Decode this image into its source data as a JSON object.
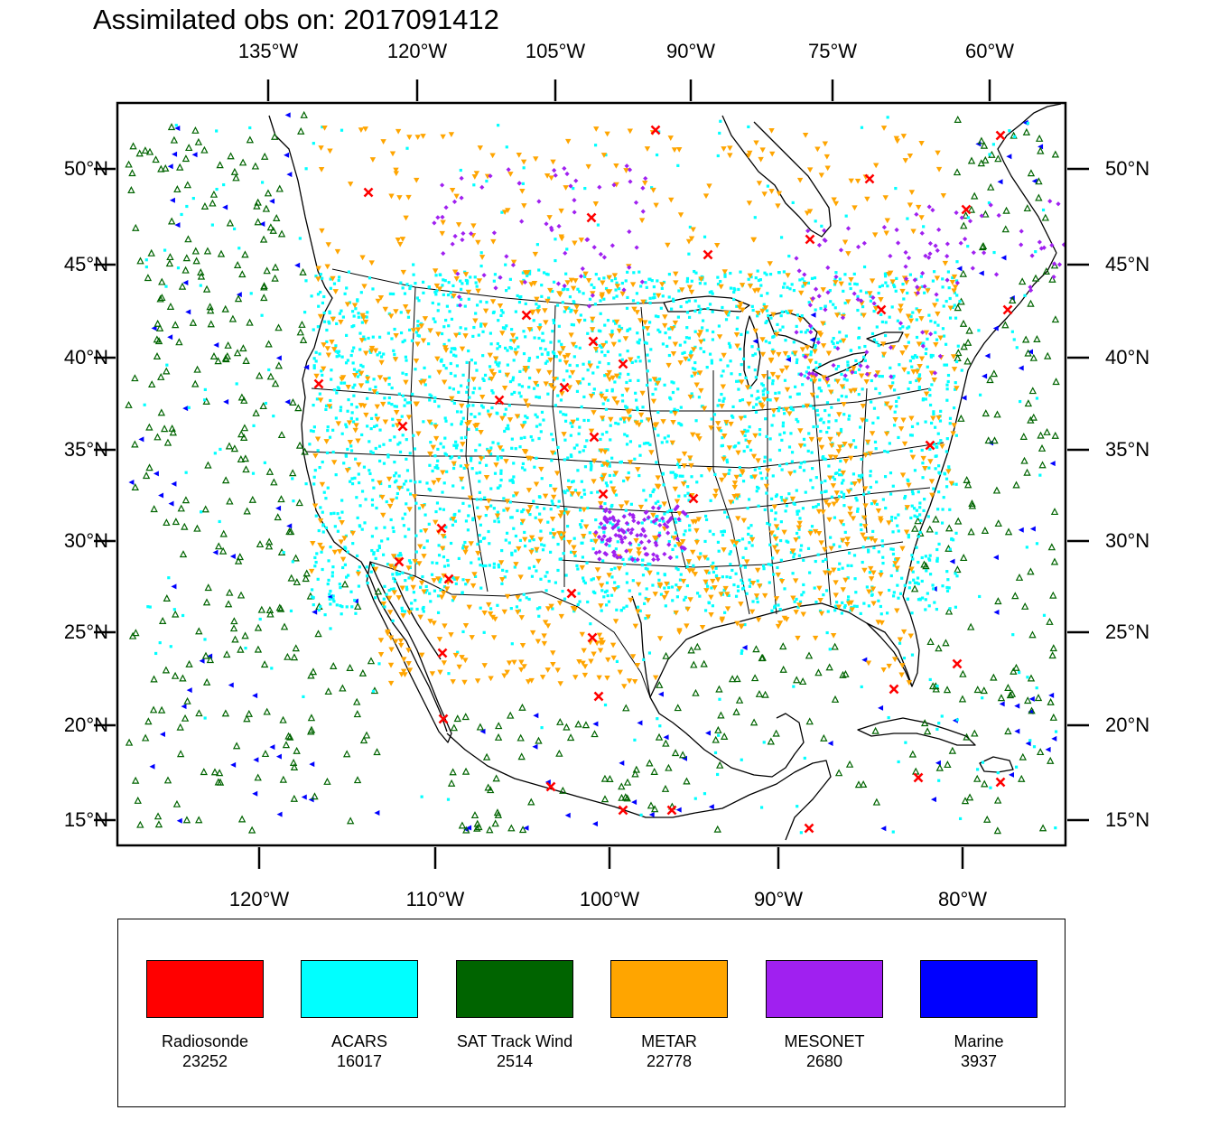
{
  "title": "Assimilated obs on: 2017091412",
  "map": {
    "top_lon_labels": [
      {
        "lon": -135,
        "label": "135°W"
      },
      {
        "lon": -120,
        "label": "120°W"
      },
      {
        "lon": -105,
        "label": "105°W"
      },
      {
        "lon": -90,
        "label": "90°W"
      },
      {
        "lon": -75,
        "label": "75°W"
      },
      {
        "lon": -60,
        "label": "60°W"
      }
    ],
    "bottom_lon_labels": [
      {
        "lon": -120,
        "label": "120°W"
      },
      {
        "lon": -110,
        "label": "110°W"
      },
      {
        "lon": -100,
        "label": "100°W"
      },
      {
        "lon": -90,
        "label": "90°W"
      },
      {
        "lon": -80,
        "label": "80°W"
      }
    ],
    "lat_labels": [
      {
        "lat": 50,
        "label": "50°N"
      },
      {
        "lat": 45,
        "label": "45°N"
      },
      {
        "lat": 40,
        "label": "40°N"
      },
      {
        "lat": 35,
        "label": "35°N"
      },
      {
        "lat": 30,
        "label": "30°N"
      },
      {
        "lat": 25,
        "label": "25°N"
      },
      {
        "lat": 20,
        "label": "20°N"
      },
      {
        "lat": 15,
        "label": "15°N"
      }
    ],
    "land_color": "#ffffff",
    "line_color": "#000000"
  },
  "legend": [
    {
      "name": "Radiosonde",
      "count": "23252",
      "color": "#ff0000",
      "marker": "x-mark"
    },
    {
      "name": "ACARS",
      "count": "16017",
      "color": "#00ffff",
      "marker": "dot"
    },
    {
      "name": "SAT Track Wind",
      "count": "2514",
      "color": "#006400",
      "marker": "up-triangle"
    },
    {
      "name": "METAR",
      "count": "22778",
      "color": "#ffa500",
      "marker": "down-triangle"
    },
    {
      "name": "MESONET",
      "count": "2680",
      "color": "#a020f0",
      "marker": "diamond"
    },
    {
      "name": "Marine",
      "count": "3937",
      "color": "#0000ff",
      "marker": "left-triangle"
    }
  ]
}
